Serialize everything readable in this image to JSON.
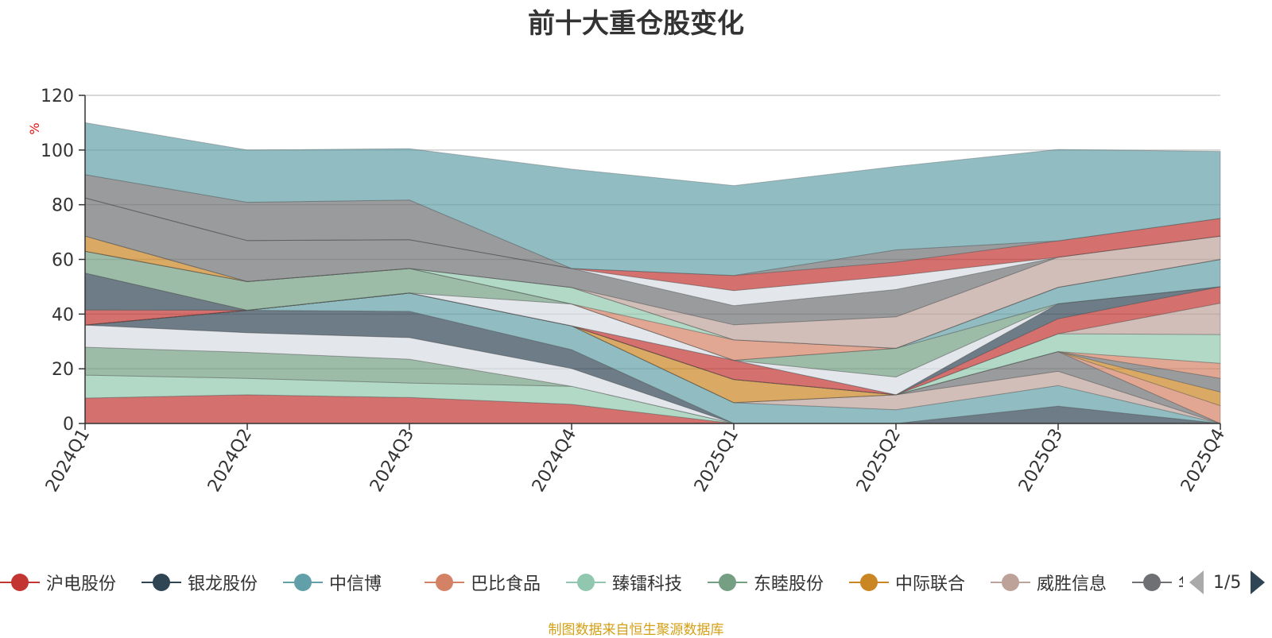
{
  "title": "前十大重仓股变化",
  "source_note": "制图数据来自恒生聚源数据库",
  "legend": {
    "items": [
      {
        "name": "沪电股份",
        "color": "#c23531"
      },
      {
        "name": "银龙股份",
        "color": "#2f4554"
      },
      {
        "name": "中信博",
        "color": "#61a0a8"
      },
      {
        "name": "巴比食品",
        "color": "#d48265"
      },
      {
        "name": "臻镭科技",
        "color": "#91c7ae"
      },
      {
        "name": "东睦股份",
        "color": "#749f83"
      },
      {
        "name": "中际联合",
        "color": "#ca8622"
      },
      {
        "name": "威胜信息",
        "color": "#bda29a"
      },
      {
        "name": "华",
        "color": "#6e7074"
      }
    ],
    "page": "1/5"
  },
  "chart_data": {
    "type": "area",
    "stacked": true,
    "title": "前十大重仓股变化",
    "ylabel": "%",
    "ylim": [
      0,
      120
    ],
    "yticks": [
      0,
      20,
      40,
      60,
      80,
      100,
      120
    ],
    "grid": true,
    "categories": [
      "2024Q1",
      "2024Q2",
      "2024Q3",
      "2024Q4",
      "2025Q1",
      "2025Q2",
      "2025Q3",
      "2025Q4"
    ],
    "series": [
      {
        "name": "沪电股份",
        "color": "#c23531",
        "values": [
          9.3,
          10.5,
          9.5,
          7.0,
          0,
          0,
          0,
          0
        ]
      },
      {
        "name": "",
        "color": "#91c7ae",
        "values": [
          8.4,
          6.0,
          5.3,
          6.6,
          0,
          0,
          0,
          0
        ]
      },
      {
        "name": "",
        "color": "#749f83",
        "values": [
          10.2,
          9.5,
          8.7,
          0,
          0,
          0,
          0,
          0
        ]
      },
      {
        "name": "",
        "color": "#d7dde4",
        "values": [
          8.1,
          7.2,
          7.9,
          6.5,
          0,
          0,
          0,
          0
        ]
      },
      {
        "name": "",
        "color": "#2f4554",
        "values": [
          0,
          8.2,
          9.6,
          6.9,
          0,
          0,
          6.3,
          0
        ]
      },
      {
        "name": "中信博",
        "color": "#61a0a8",
        "values": [
          0,
          0,
          6.7,
          8.7,
          7.6,
          5.0,
          7.6,
          0
        ]
      },
      {
        "name": "",
        "color": "#bda29a",
        "values": [
          0,
          0,
          0,
          0,
          0,
          5.5,
          5.2,
          0
        ]
      },
      {
        "name": "",
        "color": "#6e7074",
        "values": [
          0,
          0,
          0,
          0,
          0,
          0,
          7.2,
          0
        ]
      },
      {
        "name": "",
        "color": "#d48265",
        "values": [
          0,
          0,
          0,
          0,
          0,
          0,
          0,
          6.5
        ]
      },
      {
        "name": "",
        "color": "#ca8622",
        "values": [
          0,
          0,
          0,
          0,
          8.5,
          0,
          0,
          5.0
        ]
      },
      {
        "name": "",
        "color": "#6e7074",
        "values": [
          0,
          0,
          0,
          0,
          0,
          0,
          0,
          5.0
        ]
      },
      {
        "name": "",
        "color": "#d48265",
        "values": [
          0,
          0,
          0,
          0,
          0,
          0,
          0,
          5.5
        ]
      },
      {
        "name": "",
        "color": "#91c7ae",
        "values": [
          0,
          0,
          0,
          0,
          0,
          0,
          6.5,
          10.5
        ]
      },
      {
        "name": "",
        "color": "#bda29a",
        "values": [
          0,
          0,
          0,
          0,
          0,
          0,
          0,
          11.5
        ]
      },
      {
        "name": "",
        "color": "#c23531",
        "values": [
          5.5,
          0,
          0,
          0,
          7.0,
          0,
          5.5,
          6.0
        ]
      },
      {
        "name": "",
        "color": "#2f4554",
        "values": [
          13.5,
          0,
          0,
          0,
          0,
          0,
          5.5,
          0
        ]
      },
      {
        "name": "",
        "color": "#d7dde4",
        "values": [
          0,
          0,
          0,
          8.0,
          0,
          6.5,
          0,
          0
        ]
      },
      {
        "name": "",
        "color": "#749f83",
        "values": [
          8.0,
          10.5,
          9.0,
          0,
          0,
          10.5,
          0,
          0
        ]
      },
      {
        "name": "",
        "color": "#61a0a8",
        "values": [
          0,
          0,
          0,
          0,
          0,
          0,
          6.0,
          10.0
        ]
      },
      {
        "name": "",
        "color": "#d48265",
        "values": [
          0,
          0,
          0,
          0,
          7.5,
          0,
          0,
          0
        ]
      },
      {
        "name": "",
        "color": "#91c7ae",
        "values": [
          0,
          0,
          0,
          6.0,
          0,
          0,
          0,
          0
        ]
      },
      {
        "name": "",
        "color": "#ca8622",
        "values": [
          5.5,
          0,
          0,
          0,
          0,
          0,
          0,
          0
        ]
      },
      {
        "name": "",
        "color": "#bda29a",
        "values": [
          0,
          0,
          0,
          0,
          5.5,
          11.5,
          11.0,
          8.5
        ]
      },
      {
        "name": "",
        "color": "#6e7074",
        "values": [
          14.0,
          15.0,
          10.5,
          7.0,
          7.0,
          10.0,
          0,
          0
        ]
      },
      {
        "name": "",
        "color": "#d7dde4",
        "values": [
          0,
          0,
          0,
          0,
          5.5,
          5.0,
          0,
          0
        ]
      },
      {
        "name": "",
        "color": "#c23531",
        "values": [
          0,
          0,
          0,
          0,
          5.5,
          5.0,
          6.0,
          6.5
        ]
      },
      {
        "name": "",
        "color": "#6e7074",
        "values": [
          8.5,
          14.0,
          14.5,
          0,
          0,
          4.5,
          0,
          0
        ]
      },
      {
        "name": "",
        "color": "#61a0a8",
        "values": [
          19.0,
          19.1,
          18.8,
          36.3,
          32.9,
          30.5,
          33.4,
          24.5
        ]
      }
    ]
  }
}
